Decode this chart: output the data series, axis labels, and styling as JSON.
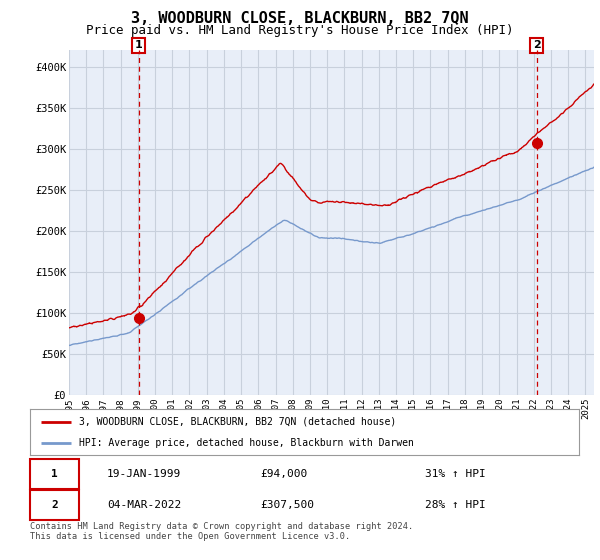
{
  "title": "3, WOODBURN CLOSE, BLACKBURN, BB2 7QN",
  "subtitle": "Price paid vs. HM Land Registry's House Price Index (HPI)",
  "title_fontsize": 11,
  "subtitle_fontsize": 9,
  "ylabel_ticks": [
    "£0",
    "£50K",
    "£100K",
    "£150K",
    "£200K",
    "£250K",
    "£300K",
    "£350K",
    "£400K"
  ],
  "ytick_values": [
    0,
    50000,
    100000,
    150000,
    200000,
    250000,
    300000,
    350000,
    400000
  ],
  "ylim": [
    0,
    420000
  ],
  "xlim_start": 1995.0,
  "xlim_end": 2025.5,
  "sale1_x": 1999.05,
  "sale1_y": 94000,
  "sale2_x": 2022.17,
  "sale2_y": 307500,
  "sale1_label": "1",
  "sale2_label": "2",
  "legend_line1": "3, WOODBURN CLOSE, BLACKBURN, BB2 7QN (detached house)",
  "legend_line2": "HPI: Average price, detached house, Blackburn with Darwen",
  "table_row1": [
    "1",
    "19-JAN-1999",
    "£94,000",
    "31% ↑ HPI"
  ],
  "table_row2": [
    "2",
    "04-MAR-2022",
    "£307,500",
    "28% ↑ HPI"
  ],
  "footnote": "Contains HM Land Registry data © Crown copyright and database right 2024.\nThis data is licensed under the Open Government Licence v3.0.",
  "red_color": "#cc0000",
  "blue_color": "#7799cc",
  "plot_bg_color": "#e8eef8",
  "background_color": "#ffffff",
  "grid_color": "#c8d0dc",
  "xtick_years": [
    1995,
    1996,
    1997,
    1998,
    1999,
    2000,
    2001,
    2002,
    2003,
    2004,
    2005,
    2006,
    2007,
    2008,
    2009,
    2010,
    2011,
    2012,
    2013,
    2014,
    2015,
    2016,
    2017,
    2018,
    2019,
    2020,
    2021,
    2022,
    2023,
    2024,
    2025
  ]
}
